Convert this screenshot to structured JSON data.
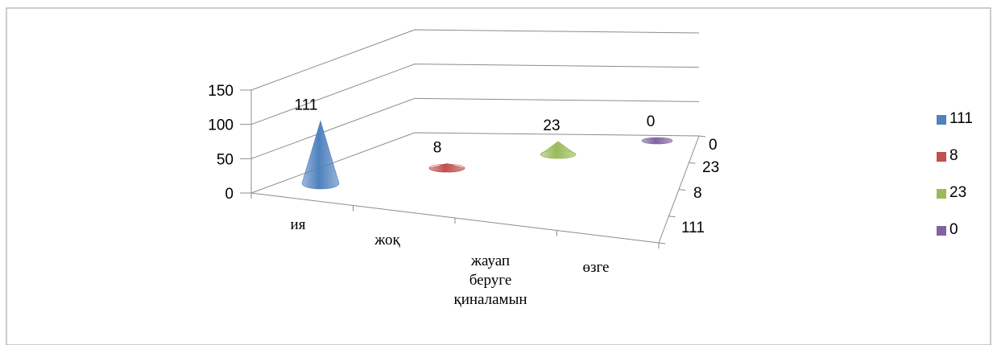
{
  "chart_data": {
    "type": "bar",
    "shape": "3d-cone",
    "categories": [
      "ия",
      "жоқ",
      "жауап беруге қиналамын",
      "өзге"
    ],
    "category_lines": [
      [
        "ия"
      ],
      [
        "жоқ"
      ],
      [
        "жауап",
        "беруге",
        "қиналамын"
      ],
      [
        "өзге"
      ]
    ],
    "series": [
      {
        "name": "111",
        "category": "ия",
        "value": 111,
        "label": "111",
        "color": "#4f81bd"
      },
      {
        "name": "8",
        "category": "жоқ",
        "value": 8,
        "label": "8",
        "color": "#c0504d"
      },
      {
        "name": "23",
        "category": "жауап беруге қиналамын",
        "value": 23,
        "label": "23",
        "color": "#9bbb59"
      },
      {
        "name": "0",
        "category": "өзге",
        "value": 0,
        "label": "0",
        "color": "#8064a2"
      }
    ],
    "y_ticks": [
      "0",
      "50",
      "100",
      "150"
    ],
    "ylim": [
      0,
      150
    ],
    "depth_ticks": [
      "0",
      "23",
      "8",
      "111"
    ],
    "grid": true,
    "legend_position": "right"
  }
}
